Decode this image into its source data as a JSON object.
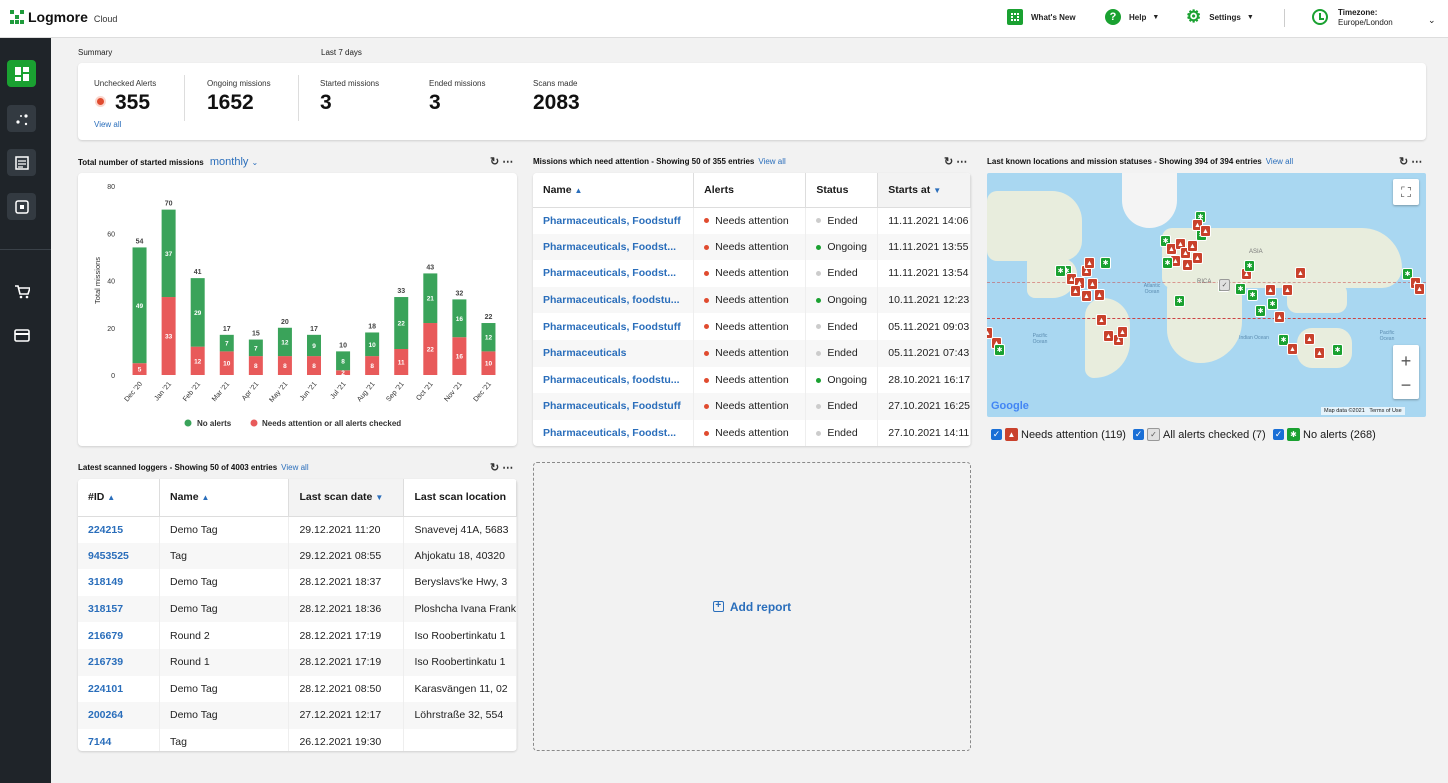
{
  "app": {
    "name": "Logmore",
    "sub": "Cloud"
  },
  "topbar": {
    "whats_new": "What's New",
    "help": "Help",
    "settings": "Settings",
    "timezone_label": "Timezone:",
    "timezone_value": "Europe/London"
  },
  "summary": {
    "section_label": "Summary",
    "period_label": "Last 7 days",
    "view_all": "View all",
    "stats": [
      {
        "label": "Unchecked Alerts",
        "value": "355"
      },
      {
        "label": "Ongoing missions",
        "value": "1652"
      },
      {
        "label": "Started missions",
        "value": "3"
      },
      {
        "label": "Ended missions",
        "value": "3"
      },
      {
        "label": "Scans made",
        "value": "2083"
      }
    ]
  },
  "chart_panel": {
    "title": "Total number of started missions",
    "period": "monthly"
  },
  "chart_data": {
    "type": "bar",
    "stacked": true,
    "categories": [
      "Dec '20",
      "Jan '21",
      "Feb '21",
      "Mar '21",
      "Apr '21",
      "May '21",
      "Jun '21",
      "Jul '21",
      "Aug '21",
      "Sep '21",
      "Oct '21",
      "Nov '21",
      "Dec '21"
    ],
    "totals": [
      54,
      70,
      41,
      17,
      15,
      20,
      17,
      10,
      18,
      33,
      43,
      32,
      22
    ],
    "series": [
      {
        "name": "Needs attention or all alerts checked",
        "color": "#e85a5a",
        "values": [
          5,
          33,
          12,
          10,
          8,
          8,
          8,
          2,
          8,
          11,
          22,
          16,
          10
        ]
      },
      {
        "name": "No alerts",
        "color": "#3aa35a",
        "values": [
          49,
          37,
          29,
          7,
          7,
          12,
          9,
          8,
          10,
          22,
          21,
          16,
          12
        ]
      }
    ],
    "ylabel": "Total missions",
    "ylim": [
      0,
      80
    ],
    "yticks": [
      0,
      20,
      40,
      60,
      80
    ],
    "grid": false,
    "legend": "bottom"
  },
  "attention_panel": {
    "title": "Missions which need attention - Showing 50 of 355 entries",
    "view_all": "View all",
    "columns": [
      "Name",
      "Alerts",
      "Status",
      "Starts at"
    ],
    "rows": [
      {
        "name": "Pharmaceuticals, Foodstuff",
        "alert": "Needs attention",
        "status": "Ended",
        "status_color": "#cccccc",
        "starts": "11.11.2021 14:06"
      },
      {
        "name": "Pharmaceuticals, Foodst...",
        "alert": "Needs attention",
        "status": "Ongoing",
        "status_color": "#1aa131",
        "starts": "11.11.2021 13:55"
      },
      {
        "name": "Pharmaceuticals, Foodst...",
        "alert": "Needs attention",
        "status": "Ended",
        "status_color": "#cccccc",
        "starts": "11.11.2021 13:54"
      },
      {
        "name": "Pharmaceuticals, foodstu...",
        "alert": "Needs attention",
        "status": "Ongoing",
        "status_color": "#1aa131",
        "starts": "10.11.2021 12:23"
      },
      {
        "name": "Pharmaceuticals, Foodstuff",
        "alert": "Needs attention",
        "status": "Ended",
        "status_color": "#cccccc",
        "starts": "05.11.2021 09:03"
      },
      {
        "name": "Pharmaceuticals",
        "alert": "Needs attention",
        "status": "Ended",
        "status_color": "#cccccc",
        "starts": "05.11.2021 07:43"
      },
      {
        "name": "Pharmaceuticals, foodstu...",
        "alert": "Needs attention",
        "status": "Ongoing",
        "status_color": "#1aa131",
        "starts": "28.10.2021 16:17"
      },
      {
        "name": "Pharmaceuticals, Foodstuff",
        "alert": "Needs attention",
        "status": "Ended",
        "status_color": "#cccccc",
        "starts": "27.10.2021 16:25"
      },
      {
        "name": "Pharmaceuticals, Foodst...",
        "alert": "Needs attention",
        "status": "Ended",
        "status_color": "#cccccc",
        "starts": "27.10.2021 14:11"
      }
    ]
  },
  "map_panel": {
    "title": "Last known locations and mission statuses - Showing 394 of 394 entries",
    "view_all": "View all",
    "ocean_labels": [
      "Atlantic Ocean",
      "Pacific Ocean",
      "Indian Ocean",
      "Pacific Ocean",
      "ASIA",
      "RICA"
    ],
    "google": "Google",
    "map_data": "Map data ©2021",
    "terms": "Terms of Use",
    "legend": [
      {
        "label": "Needs attention (119)",
        "color": "#c9412c"
      },
      {
        "label": "All alerts checked (7)",
        "color": "#e0e0e0"
      },
      {
        "label": "No alerts (268)",
        "color": "#1aa131"
      }
    ]
  },
  "loggers_panel": {
    "title": "Latest scanned loggers - Showing 50 of 4003 entries",
    "view_all": "View all",
    "columns": [
      "#ID",
      "Name",
      "Last scan date",
      "Last scan location"
    ],
    "rows": [
      {
        "id": "224215",
        "name": "Demo Tag",
        "date": "29.12.2021 11:20",
        "loc": "Snavevej 41A, 5683"
      },
      {
        "id": "9453525",
        "name": "Tag",
        "date": "29.12.2021 08:55",
        "loc": "Ahjokatu 18, 40320"
      },
      {
        "id": "318149",
        "name": "Demo Tag",
        "date": "28.12.2021 18:37",
        "loc": "Beryslavs'ke Hwy, 3"
      },
      {
        "id": "318157",
        "name": "Demo Tag",
        "date": "28.12.2021 18:36",
        "loc": "Ploshcha Ivana Frank"
      },
      {
        "id": "216679",
        "name": "Round 2",
        "date": "28.12.2021 17:19",
        "loc": "Iso Roobertinkatu 1"
      },
      {
        "id": "216739",
        "name": "Round 1",
        "date": "28.12.2021 17:19",
        "loc": "Iso Roobertinkatu 1"
      },
      {
        "id": "224101",
        "name": "Demo Tag",
        "date": "28.12.2021 08:50",
        "loc": "Karasvängen 11, 02"
      },
      {
        "id": "200264",
        "name": "Demo Tag",
        "date": "27.12.2021 12:17",
        "loc": "Löhrstraße 32, 554"
      },
      {
        "id": "7144",
        "name": "Tag",
        "date": "26.12.2021 19:30",
        "loc": ""
      }
    ]
  },
  "add_report": "Add report"
}
